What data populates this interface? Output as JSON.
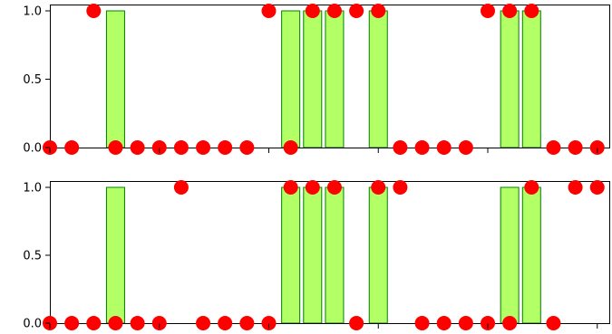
{
  "chart_data": [
    {
      "type": "bar",
      "title": "",
      "xlabel": "",
      "ylabel": "",
      "ylim": [
        0,
        1.0
      ],
      "yticks": [
        "0.0",
        "0.5",
        "1.0"
      ],
      "grid": false,
      "bar_color": "#b3ff66",
      "bar_edge_color": "#008000",
      "point_color": "#ff0000",
      "bars": [
        {
          "x": 3,
          "value": 1.0
        },
        {
          "x": 11,
          "value": 1.0
        },
        {
          "x": 12,
          "value": 1.0
        },
        {
          "x": 13,
          "value": 1.0
        },
        {
          "x": 15,
          "value": 1.0
        },
        {
          "x": 21,
          "value": 1.0
        },
        {
          "x": 22,
          "value": 1.0
        }
      ],
      "points": [
        {
          "x": 0,
          "y": 0
        },
        {
          "x": 1,
          "y": 0
        },
        {
          "x": 2,
          "y": 1
        },
        {
          "x": 3,
          "y": 0
        },
        {
          "x": 4,
          "y": 0
        },
        {
          "x": 5,
          "y": 0
        },
        {
          "x": 6,
          "y": 0
        },
        {
          "x": 7,
          "y": 0
        },
        {
          "x": 8,
          "y": 0
        },
        {
          "x": 9,
          "y": 0
        },
        {
          "x": 10,
          "y": 1
        },
        {
          "x": 11,
          "y": 0
        },
        {
          "x": 12,
          "y": 1
        },
        {
          "x": 13,
          "y": 1
        },
        {
          "x": 14,
          "y": 1
        },
        {
          "x": 15,
          "y": 1
        },
        {
          "x": 16,
          "y": 0
        },
        {
          "x": 17,
          "y": 0
        },
        {
          "x": 18,
          "y": 0
        },
        {
          "x": 19,
          "y": 0
        },
        {
          "x": 20,
          "y": 1
        },
        {
          "x": 21,
          "y": 1
        },
        {
          "x": 22,
          "y": 1
        },
        {
          "x": 23,
          "y": 0
        },
        {
          "x": 24,
          "y": 0
        },
        {
          "x": 25,
          "y": 0
        }
      ],
      "xlim": [
        0,
        25
      ]
    },
    {
      "type": "bar",
      "title": "",
      "xlabel": "",
      "ylabel": "",
      "ylim": [
        0,
        1.0
      ],
      "yticks": [
        "0.0",
        "0.5",
        "1.0"
      ],
      "grid": false,
      "bar_color": "#b3ff66",
      "bar_edge_color": "#008000",
      "point_color": "#ff0000",
      "bars": [
        {
          "x": 3,
          "value": 1.0
        },
        {
          "x": 11,
          "value": 1.0
        },
        {
          "x": 12,
          "value": 1.0
        },
        {
          "x": 13,
          "value": 1.0
        },
        {
          "x": 15,
          "value": 1.0
        },
        {
          "x": 21,
          "value": 1.0
        },
        {
          "x": 22,
          "value": 1.0
        }
      ],
      "points": [
        {
          "x": 0,
          "y": 0
        },
        {
          "x": 1,
          "y": 0
        },
        {
          "x": 2,
          "y": 0
        },
        {
          "x": 3,
          "y": 0
        },
        {
          "x": 4,
          "y": 0
        },
        {
          "x": 5,
          "y": 0
        },
        {
          "x": 6,
          "y": 1
        },
        {
          "x": 7,
          "y": 0
        },
        {
          "x": 8,
          "y": 0
        },
        {
          "x": 9,
          "y": 0
        },
        {
          "x": 10,
          "y": 0
        },
        {
          "x": 11,
          "y": 1
        },
        {
          "x": 12,
          "y": 1
        },
        {
          "x": 13,
          "y": 1
        },
        {
          "x": 14,
          "y": 0
        },
        {
          "x": 15,
          "y": 1
        },
        {
          "x": 16,
          "y": 1
        },
        {
          "x": 17,
          "y": 0
        },
        {
          "x": 18,
          "y": 0
        },
        {
          "x": 19,
          "y": 0
        },
        {
          "x": 20,
          "y": 0
        },
        {
          "x": 21,
          "y": 0
        },
        {
          "x": 22,
          "y": 1
        },
        {
          "x": 23,
          "y": 0
        },
        {
          "x": 24,
          "y": 1
        },
        {
          "x": 25,
          "y": 1
        }
      ],
      "xlim": [
        0,
        25
      ]
    }
  ]
}
